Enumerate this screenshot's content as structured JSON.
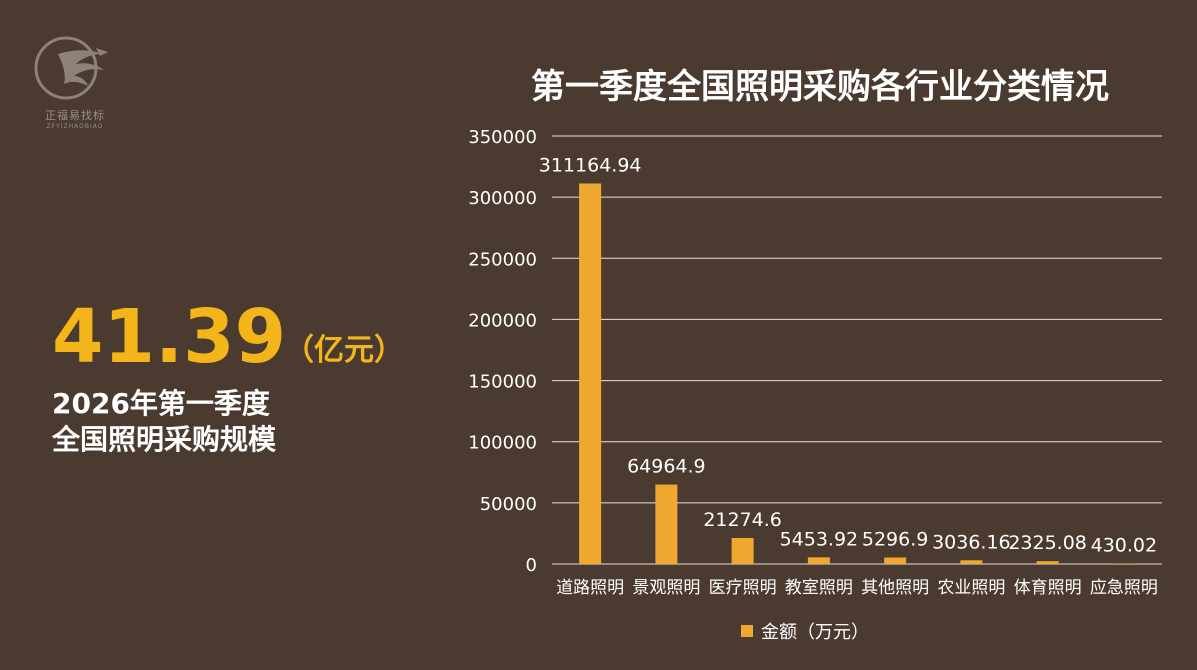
{
  "logo": {
    "cn_text": "正福易找标",
    "en_text": "ZFYIZHAOBIAO"
  },
  "headline": {
    "value": "41.39",
    "unit": "（亿元）",
    "line1": "2026年第一季度",
    "line2": "全国照明采购规模"
  },
  "colors": {
    "background": "#4a3a2f",
    "accent": "#f3b51a",
    "bar": "#f0a830",
    "grid": "#e8e2dc"
  },
  "chart_data": {
    "type": "bar",
    "title": "第一季度全国照明采购各行业分类情况",
    "categories": [
      "道路照明",
      "景观照明",
      "医疗照明",
      "教室照明",
      "其他照明",
      "农业照明",
      "体育照明",
      "应急照明"
    ],
    "series": [
      {
        "name": "金额（万元）",
        "values": [
          311164.94,
          64964.9,
          21274.6,
          5453.92,
          5296.9,
          3036.16,
          2325.08,
          430.02
        ],
        "labels": [
          "311164.94",
          "64964.9",
          "21274.6",
          "5453.92",
          "5296.9",
          "3036.16",
          "2325.08",
          "430.02"
        ]
      }
    ],
    "ylim": [
      0,
      350000
    ],
    "yticks": [
      "0",
      "50000",
      "100000",
      "150000",
      "200000",
      "250000",
      "300000",
      "350000"
    ],
    "grid": true,
    "legend_position": "bottom"
  }
}
